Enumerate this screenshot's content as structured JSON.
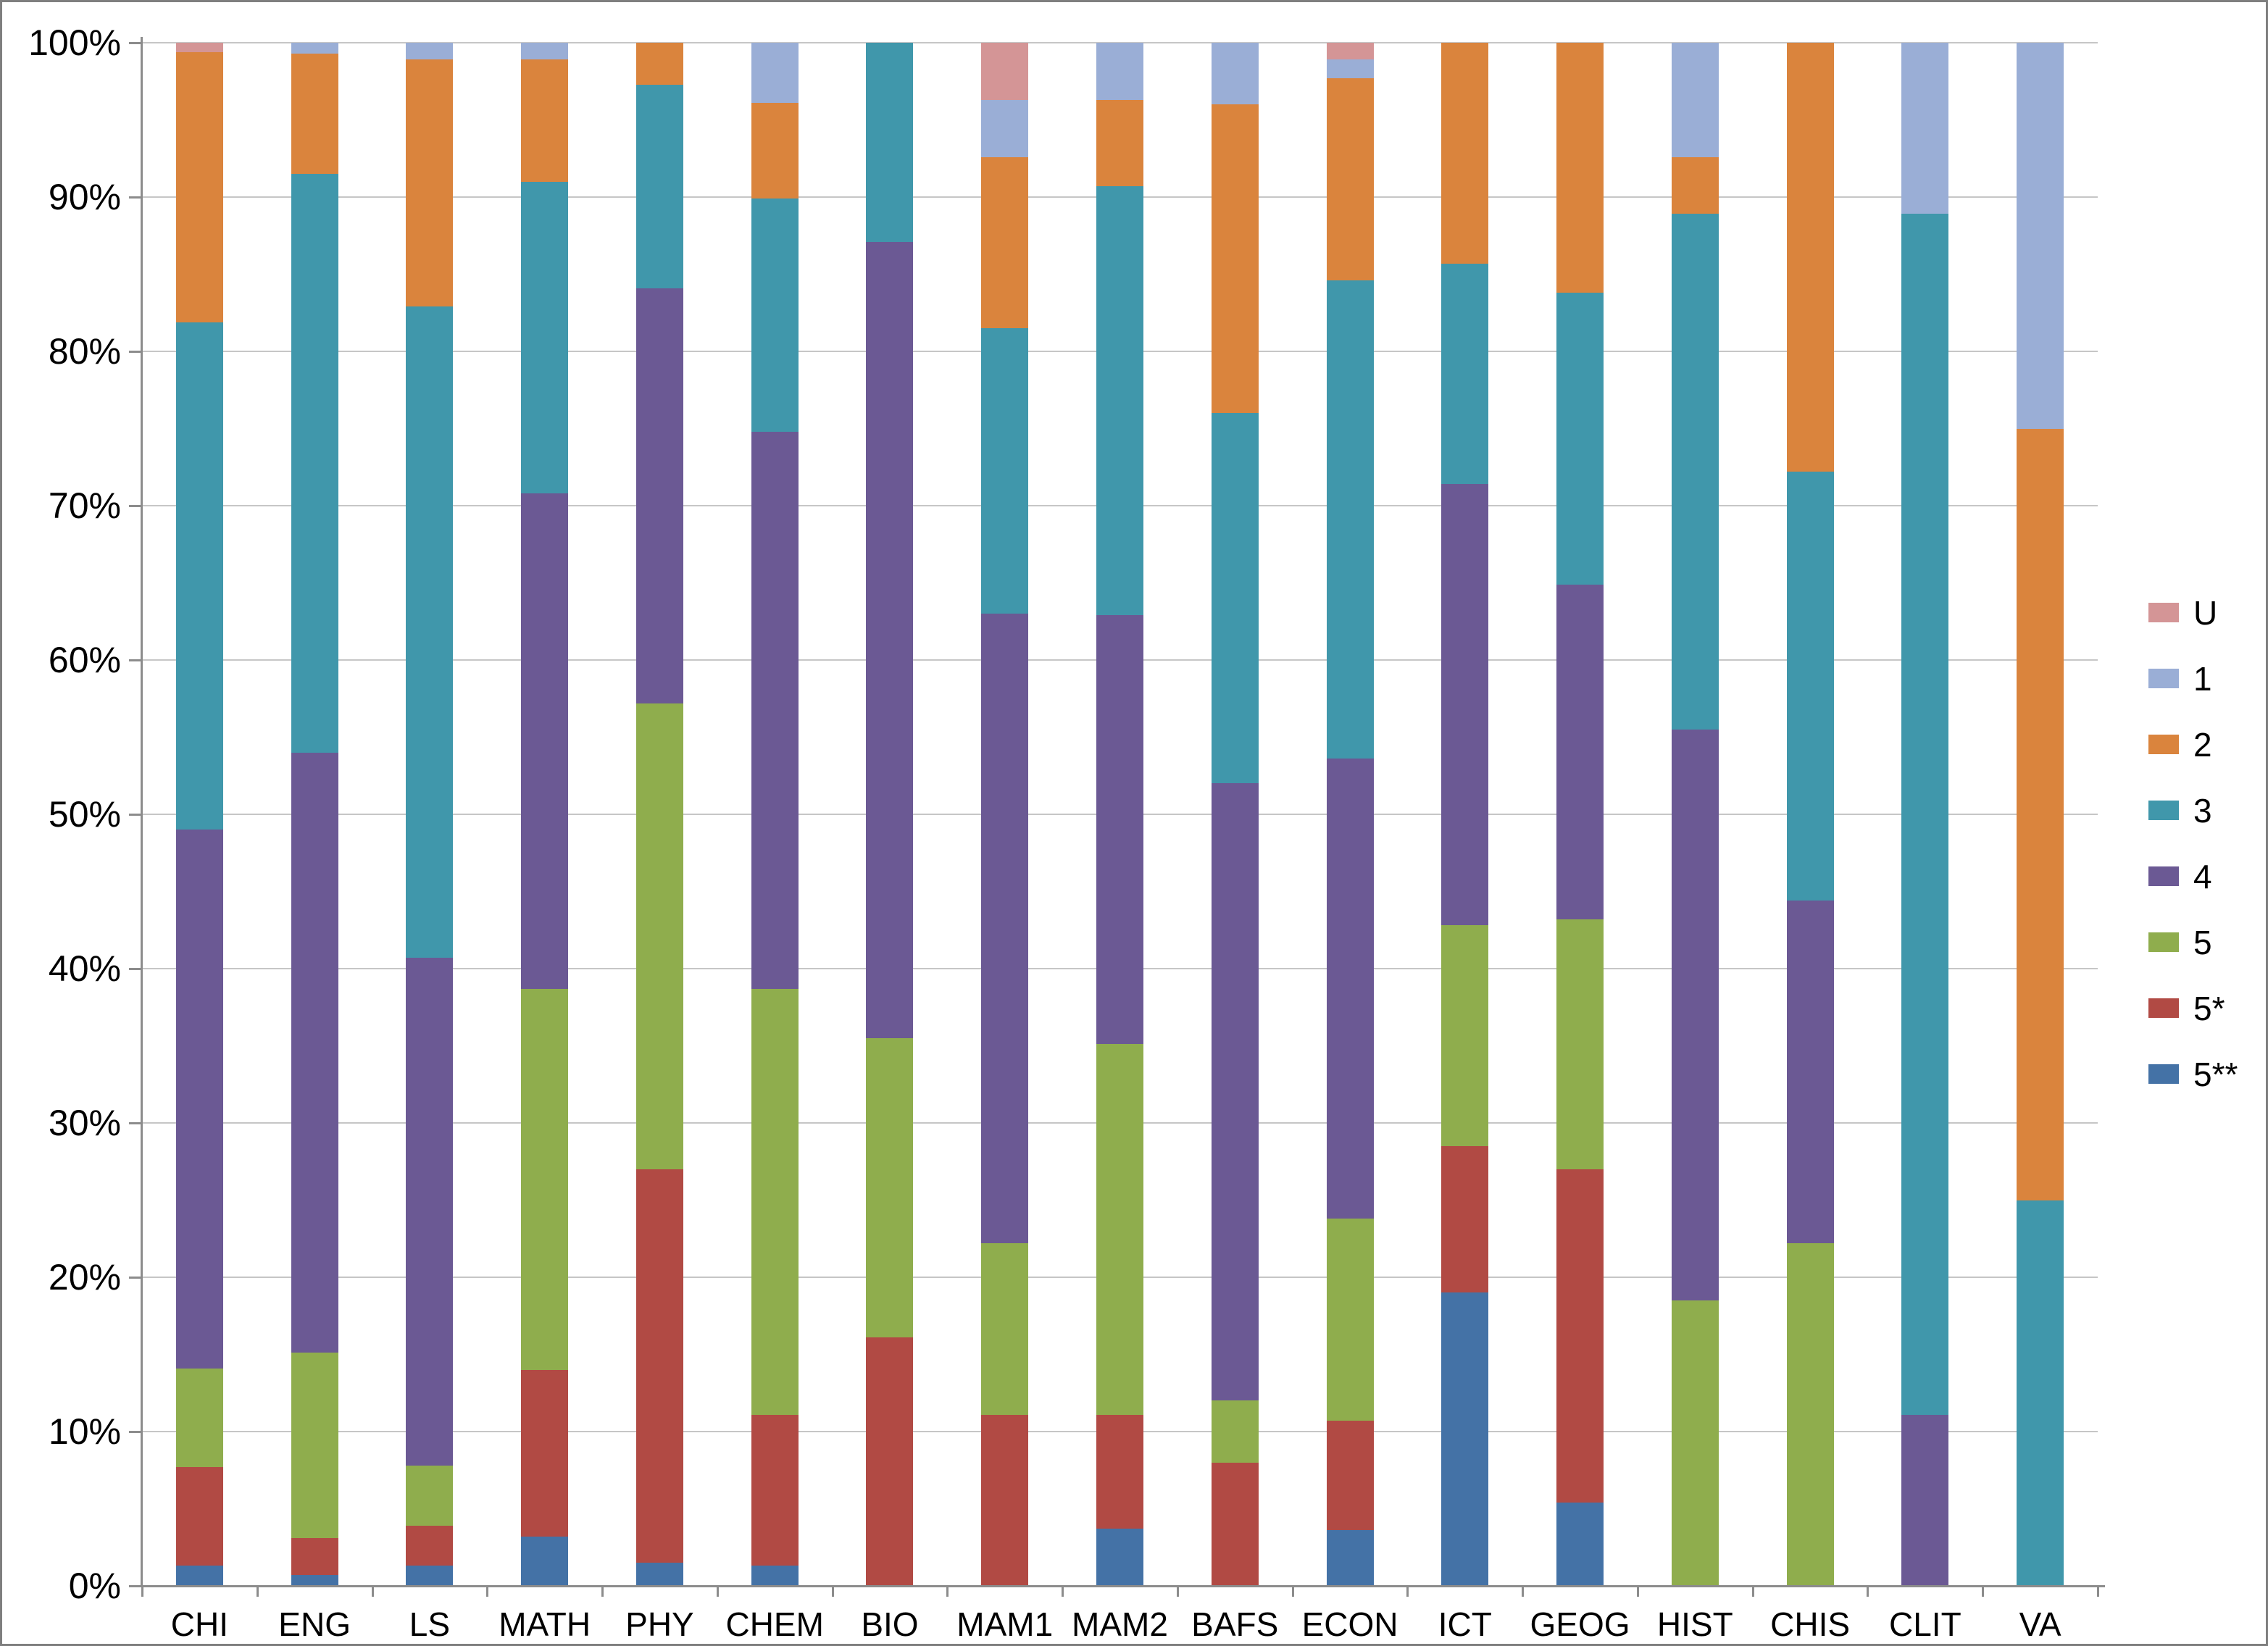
{
  "chart_data": {
    "type": "bar",
    "subtype": "stacked-100-percent-column",
    "title": "",
    "xlabel": "",
    "ylabel": "",
    "grid": true,
    "legend_position": "right",
    "ylim": [
      0,
      100
    ],
    "y_axis": {
      "tick_labels": [
        "0%",
        "10%",
        "20%",
        "30%",
        "40%",
        "50%",
        "60%",
        "70%",
        "80%",
        "90%",
        "100%"
      ],
      "tick_step_percent": 10
    },
    "categories": [
      "CHI",
      "ENG",
      "LS",
      "MATH",
      "PHY",
      "CHEM",
      "BIO",
      "MAM1",
      "MAM2",
      "BAFS",
      "ECON",
      "ICT",
      "GEOG",
      "HIST",
      "CHIS",
      "CLIT",
      "VA"
    ],
    "stack_order_bottom_to_top": [
      "5**",
      "5*",
      "5",
      "4",
      "3",
      "2",
      "1",
      "U"
    ],
    "series": [
      {
        "name": "U",
        "color": "#d49596",
        "values": [
          0.6,
          0,
          0,
          0,
          0,
          0,
          0,
          3.7,
          0,
          0,
          1.1,
          0,
          0,
          0,
          0,
          0,
          0
        ]
      },
      {
        "name": "1",
        "color": "#9aaed6",
        "values": [
          0,
          0.7,
          1.1,
          1.1,
          0,
          3.9,
          0,
          3.7,
          3.7,
          4.0,
          1.2,
          0,
          0,
          7.4,
          0,
          11.1,
          25.0
        ]
      },
      {
        "name": "2",
        "color": "#da843d",
        "values": [
          17.5,
          7.8,
          16.0,
          7.9,
          2.7,
          6.2,
          0,
          11.1,
          5.6,
          20.0,
          13.1,
          14.3,
          16.2,
          3.7,
          27.8,
          0,
          50.0
        ]
      },
      {
        "name": "3",
        "color": "#4097ab",
        "values": [
          32.9,
          37.5,
          42.2,
          20.2,
          13.2,
          15.1,
          12.9,
          18.5,
          27.8,
          24.0,
          31.0,
          14.3,
          18.9,
          33.4,
          27.8,
          77.8,
          25.0
        ]
      },
      {
        "name": "4",
        "color": "#6b5994",
        "values": [
          34.9,
          38.9,
          32.9,
          32.1,
          26.9,
          36.1,
          51.6,
          40.8,
          27.8,
          40.0,
          29.8,
          28.6,
          21.7,
          37.0,
          22.2,
          11.1,
          0
        ]
      },
      {
        "name": "5",
        "color": "#8fad4d",
        "values": [
          6.4,
          12.0,
          3.9,
          24.7,
          30.2,
          27.6,
          19.4,
          11.1,
          24.0,
          4.0,
          13.1,
          14.3,
          16.2,
          18.5,
          22.2,
          0,
          0
        ]
      },
      {
        "name": "5*",
        "color": "#b14a44",
        "values": [
          6.4,
          2.4,
          2.6,
          10.8,
          25.5,
          9.8,
          16.1,
          11.1,
          7.4,
          8.0,
          7.1,
          9.5,
          21.6,
          0,
          0,
          0,
          0
        ]
      },
      {
        "name": "5**",
        "color": "#4472a6",
        "values": [
          1.3,
          0.7,
          1.3,
          3.2,
          1.5,
          1.3,
          0,
          0,
          3.7,
          0,
          3.6,
          19.0,
          5.4,
          0,
          0,
          0,
          0
        ]
      }
    ],
    "colors": {
      "gridline": "#c6c6c6",
      "axis": "#8c8c8c",
      "frame_border": "#7f7f7f",
      "text": "#000000"
    }
  }
}
